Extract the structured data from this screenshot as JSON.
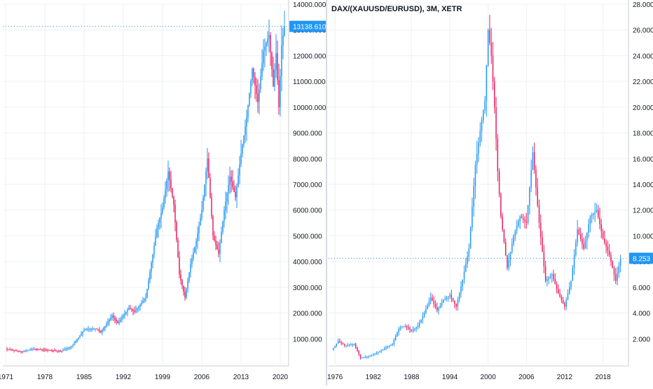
{
  "chart_data": [
    {
      "type": "candlestick",
      "title": "",
      "x_label": "",
      "y_label": "",
      "ylim": [
        0,
        14000
      ],
      "xlim": [
        1970.5,
        2021.5
      ],
      "last_value": 13138.61,
      "last_value_label": "13138.610",
      "y_ticks": [
        "1000.000",
        "2000.000",
        "3000.000",
        "4000.000",
        "5000.000",
        "6000.000",
        "7000.000",
        "8000.000",
        "9000.000",
        "10000.000",
        "11000.000",
        "12000.000",
        "13000.000",
        "14000.000"
      ],
      "x_ticks": [
        {
          "t": 1971,
          "label": "1971"
        },
        {
          "t": 1978,
          "label": "1978"
        },
        {
          "t": 1985,
          "label": "1985"
        },
        {
          "t": 1992,
          "label": "1992"
        },
        {
          "t": 1999,
          "label": "1999"
        },
        {
          "t": 2006,
          "label": "2006"
        },
        {
          "t": 2013,
          "label": "2013"
        },
        {
          "t": 2020,
          "label": "2020"
        }
      ],
      "grid": true,
      "colors": {
        "up": "#2196f3",
        "down": "#e91e63",
        "grid": "#eef0f3",
        "axis_text": "#131722",
        "last_tag": "#2196f3"
      },
      "series": [
        {
          "step": 0.25,
          "anchors": [
            [
              1971,
              600
            ],
            [
              1974,
              500
            ],
            [
              1976,
              600
            ],
            [
              1981,
              520
            ],
            [
              1983,
              750
            ],
            [
              1985,
              1350
            ],
            [
              1987,
              1400
            ],
            [
              1988,
              1250
            ],
            [
              1990,
              1900
            ],
            [
              1991,
              1600
            ],
            [
              1993,
              2200
            ],
            [
              1994,
              2050
            ],
            [
              1996,
              2600
            ],
            [
              1998,
              5300
            ],
            [
              1999,
              6100
            ],
            [
              2000,
              7500
            ],
            [
              2001,
              6200
            ],
            [
              2002,
              3500
            ],
            [
              2003,
              2600
            ],
            [
              2004,
              3900
            ],
            [
              2005,
              4800
            ],
            [
              2006,
              6000
            ],
            [
              2007,
              8000
            ],
            [
              2008,
              5000
            ],
            [
              2009,
              4300
            ],
            [
              2010,
              6000
            ],
            [
              2011,
              7300
            ],
            [
              2012,
              6500
            ],
            [
              2013,
              8200
            ],
            [
              2014,
              9600
            ],
            [
              2015,
              11500
            ],
            [
              2016,
              10200
            ],
            [
              2017,
              12200
            ],
            [
              2018,
              12800
            ],
            [
              2018.75,
              10800
            ],
            [
              2019.25,
              12100
            ],
            [
              2019.75,
              10000
            ],
            [
              2020.25,
              12400
            ],
            [
              2020.75,
              13138.61
            ]
          ]
        }
      ]
    },
    {
      "type": "candlestick",
      "title": "DAX/(XAUUSD/EURUSD), 3M, XETR",
      "x_label": "",
      "y_label": "",
      "ylim": [
        0,
        28
      ],
      "xlim": [
        1975,
        2022
      ],
      "last_value": 8.253,
      "last_value_label": "8.253",
      "y_ticks": [
        "2.000",
        "4.000",
        "6.000",
        "8.000",
        "10.000",
        "12.000",
        "14.000",
        "16.000",
        "18.000",
        "20.000",
        "22.000",
        "24.000",
        "26.000",
        "28.000"
      ],
      "x_ticks": [
        {
          "t": 1976,
          "label": "1976"
        },
        {
          "t": 1982,
          "label": "1982"
        },
        {
          "t": 1988,
          "label": "1988"
        },
        {
          "t": 1994,
          "label": "1994"
        },
        {
          "t": 2000,
          "label": "2000"
        },
        {
          "t": 2006,
          "label": "2006"
        },
        {
          "t": 2012,
          "label": "2012"
        },
        {
          "t": 2018,
          "label": "2018"
        }
      ],
      "grid": true,
      "colors": {
        "up": "#2196f3",
        "down": "#e91e63",
        "grid": "#eef0f3",
        "axis_text": "#131722",
        "last_tag": "#2196f3"
      },
      "series": [
        {
          "step": 0.25,
          "anchors": [
            [
              1975.5,
              1.1
            ],
            [
              1976.5,
              1.8
            ],
            [
              1977.5,
              1.5
            ],
            [
              1979,
              1.6
            ],
            [
              1980,
              0.5
            ],
            [
              1981,
              0.6
            ],
            [
              1983,
              1.0
            ],
            [
              1985,
              1.6
            ],
            [
              1986,
              2.8
            ],
            [
              1987,
              3.0
            ],
            [
              1988,
              2.6
            ],
            [
              1989,
              3.0
            ],
            [
              1990,
              4.0
            ],
            [
              1991,
              5.2
            ],
            [
              1992,
              4.2
            ],
            [
              1993,
              5.0
            ],
            [
              1994,
              5.4
            ],
            [
              1995,
              4.5
            ],
            [
              1996,
              6.6
            ],
            [
              1997,
              9.0
            ],
            [
              1998,
              15.5
            ],
            [
              1999,
              19.0
            ],
            [
              1999.5,
              20.5
            ],
            [
              2000,
              26.0
            ],
            [
              2000.5,
              24.0
            ],
            [
              2001,
              20.0
            ],
            [
              2001.5,
              15.0
            ],
            [
              2002,
              11.5
            ],
            [
              2003,
              7.5
            ],
            [
              2004,
              10.0
            ],
            [
              2005,
              11.5
            ],
            [
              2006,
              11.0
            ],
            [
              2007,
              16.5
            ],
            [
              2008,
              11.0
            ],
            [
              2009,
              6.5
            ],
            [
              2010,
              7.0
            ],
            [
              2011,
              5.5
            ],
            [
              2012,
              4.5
            ],
            [
              2013,
              6.5
            ],
            [
              2014,
              10.5
            ],
            [
              2015,
              9.0
            ],
            [
              2016,
              11.5
            ],
            [
              2017,
              12.0
            ],
            [
              2018,
              9.8
            ],
            [
              2019,
              8.5
            ],
            [
              2020,
              6.5
            ],
            [
              2020.75,
              8.253
            ]
          ]
        }
      ]
    }
  ]
}
